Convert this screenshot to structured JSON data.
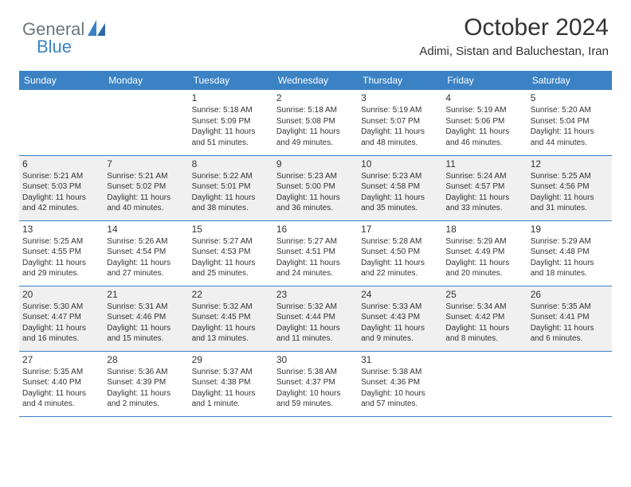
{
  "brand": {
    "general": "General",
    "blue": "Blue"
  },
  "title": "October 2024",
  "location": "Adimi, Sistan and Baluchestan, Iran",
  "colors": {
    "header_bg": "#3b82c4",
    "alt_row_bg": "#f0f0f0",
    "text": "#333333",
    "page_bg": "#ffffff"
  },
  "typography": {
    "title_fontsize": 30,
    "location_fontsize": 15,
    "dayhead_fontsize": 12,
    "cell_fontsize": 10
  },
  "dayNames": [
    "Sunday",
    "Monday",
    "Tuesday",
    "Wednesday",
    "Thursday",
    "Friday",
    "Saturday"
  ],
  "weeks": [
    [
      null,
      null,
      {
        "d": "1",
        "sr": "Sunrise: 5:18 AM",
        "ss": "Sunset: 5:09 PM",
        "dl1": "Daylight: 11 hours",
        "dl2": "and 51 minutes."
      },
      {
        "d": "2",
        "sr": "Sunrise: 5:18 AM",
        "ss": "Sunset: 5:08 PM",
        "dl1": "Daylight: 11 hours",
        "dl2": "and 49 minutes."
      },
      {
        "d": "3",
        "sr": "Sunrise: 5:19 AM",
        "ss": "Sunset: 5:07 PM",
        "dl1": "Daylight: 11 hours",
        "dl2": "and 48 minutes."
      },
      {
        "d": "4",
        "sr": "Sunrise: 5:19 AM",
        "ss": "Sunset: 5:06 PM",
        "dl1": "Daylight: 11 hours",
        "dl2": "and 46 minutes."
      },
      {
        "d": "5",
        "sr": "Sunrise: 5:20 AM",
        "ss": "Sunset: 5:04 PM",
        "dl1": "Daylight: 11 hours",
        "dl2": "and 44 minutes."
      }
    ],
    [
      {
        "d": "6",
        "sr": "Sunrise: 5:21 AM",
        "ss": "Sunset: 5:03 PM",
        "dl1": "Daylight: 11 hours",
        "dl2": "and 42 minutes."
      },
      {
        "d": "7",
        "sr": "Sunrise: 5:21 AM",
        "ss": "Sunset: 5:02 PM",
        "dl1": "Daylight: 11 hours",
        "dl2": "and 40 minutes."
      },
      {
        "d": "8",
        "sr": "Sunrise: 5:22 AM",
        "ss": "Sunset: 5:01 PM",
        "dl1": "Daylight: 11 hours",
        "dl2": "and 38 minutes."
      },
      {
        "d": "9",
        "sr": "Sunrise: 5:23 AM",
        "ss": "Sunset: 5:00 PM",
        "dl1": "Daylight: 11 hours",
        "dl2": "and 36 minutes."
      },
      {
        "d": "10",
        "sr": "Sunrise: 5:23 AM",
        "ss": "Sunset: 4:58 PM",
        "dl1": "Daylight: 11 hours",
        "dl2": "and 35 minutes."
      },
      {
        "d": "11",
        "sr": "Sunrise: 5:24 AM",
        "ss": "Sunset: 4:57 PM",
        "dl1": "Daylight: 11 hours",
        "dl2": "and 33 minutes."
      },
      {
        "d": "12",
        "sr": "Sunrise: 5:25 AM",
        "ss": "Sunset: 4:56 PM",
        "dl1": "Daylight: 11 hours",
        "dl2": "and 31 minutes."
      }
    ],
    [
      {
        "d": "13",
        "sr": "Sunrise: 5:25 AM",
        "ss": "Sunset: 4:55 PM",
        "dl1": "Daylight: 11 hours",
        "dl2": "and 29 minutes."
      },
      {
        "d": "14",
        "sr": "Sunrise: 5:26 AM",
        "ss": "Sunset: 4:54 PM",
        "dl1": "Daylight: 11 hours",
        "dl2": "and 27 minutes."
      },
      {
        "d": "15",
        "sr": "Sunrise: 5:27 AM",
        "ss": "Sunset: 4:53 PM",
        "dl1": "Daylight: 11 hours",
        "dl2": "and 25 minutes."
      },
      {
        "d": "16",
        "sr": "Sunrise: 5:27 AM",
        "ss": "Sunset: 4:51 PM",
        "dl1": "Daylight: 11 hours",
        "dl2": "and 24 minutes."
      },
      {
        "d": "17",
        "sr": "Sunrise: 5:28 AM",
        "ss": "Sunset: 4:50 PM",
        "dl1": "Daylight: 11 hours",
        "dl2": "and 22 minutes."
      },
      {
        "d": "18",
        "sr": "Sunrise: 5:29 AM",
        "ss": "Sunset: 4:49 PM",
        "dl1": "Daylight: 11 hours",
        "dl2": "and 20 minutes."
      },
      {
        "d": "19",
        "sr": "Sunrise: 5:29 AM",
        "ss": "Sunset: 4:48 PM",
        "dl1": "Daylight: 11 hours",
        "dl2": "and 18 minutes."
      }
    ],
    [
      {
        "d": "20",
        "sr": "Sunrise: 5:30 AM",
        "ss": "Sunset: 4:47 PM",
        "dl1": "Daylight: 11 hours",
        "dl2": "and 16 minutes."
      },
      {
        "d": "21",
        "sr": "Sunrise: 5:31 AM",
        "ss": "Sunset: 4:46 PM",
        "dl1": "Daylight: 11 hours",
        "dl2": "and 15 minutes."
      },
      {
        "d": "22",
        "sr": "Sunrise: 5:32 AM",
        "ss": "Sunset: 4:45 PM",
        "dl1": "Daylight: 11 hours",
        "dl2": "and 13 minutes."
      },
      {
        "d": "23",
        "sr": "Sunrise: 5:32 AM",
        "ss": "Sunset: 4:44 PM",
        "dl1": "Daylight: 11 hours",
        "dl2": "and 11 minutes."
      },
      {
        "d": "24",
        "sr": "Sunrise: 5:33 AM",
        "ss": "Sunset: 4:43 PM",
        "dl1": "Daylight: 11 hours",
        "dl2": "and 9 minutes."
      },
      {
        "d": "25",
        "sr": "Sunrise: 5:34 AM",
        "ss": "Sunset: 4:42 PM",
        "dl1": "Daylight: 11 hours",
        "dl2": "and 8 minutes."
      },
      {
        "d": "26",
        "sr": "Sunrise: 5:35 AM",
        "ss": "Sunset: 4:41 PM",
        "dl1": "Daylight: 11 hours",
        "dl2": "and 6 minutes."
      }
    ],
    [
      {
        "d": "27",
        "sr": "Sunrise: 5:35 AM",
        "ss": "Sunset: 4:40 PM",
        "dl1": "Daylight: 11 hours",
        "dl2": "and 4 minutes."
      },
      {
        "d": "28",
        "sr": "Sunrise: 5:36 AM",
        "ss": "Sunset: 4:39 PM",
        "dl1": "Daylight: 11 hours",
        "dl2": "and 2 minutes."
      },
      {
        "d": "29",
        "sr": "Sunrise: 5:37 AM",
        "ss": "Sunset: 4:38 PM",
        "dl1": "Daylight: 11 hours",
        "dl2": "and 1 minute."
      },
      {
        "d": "30",
        "sr": "Sunrise: 5:38 AM",
        "ss": "Sunset: 4:37 PM",
        "dl1": "Daylight: 10 hours",
        "dl2": "and 59 minutes."
      },
      {
        "d": "31",
        "sr": "Sunrise: 5:38 AM",
        "ss": "Sunset: 4:36 PM",
        "dl1": "Daylight: 10 hours",
        "dl2": "and 57 minutes."
      },
      null,
      null
    ]
  ]
}
